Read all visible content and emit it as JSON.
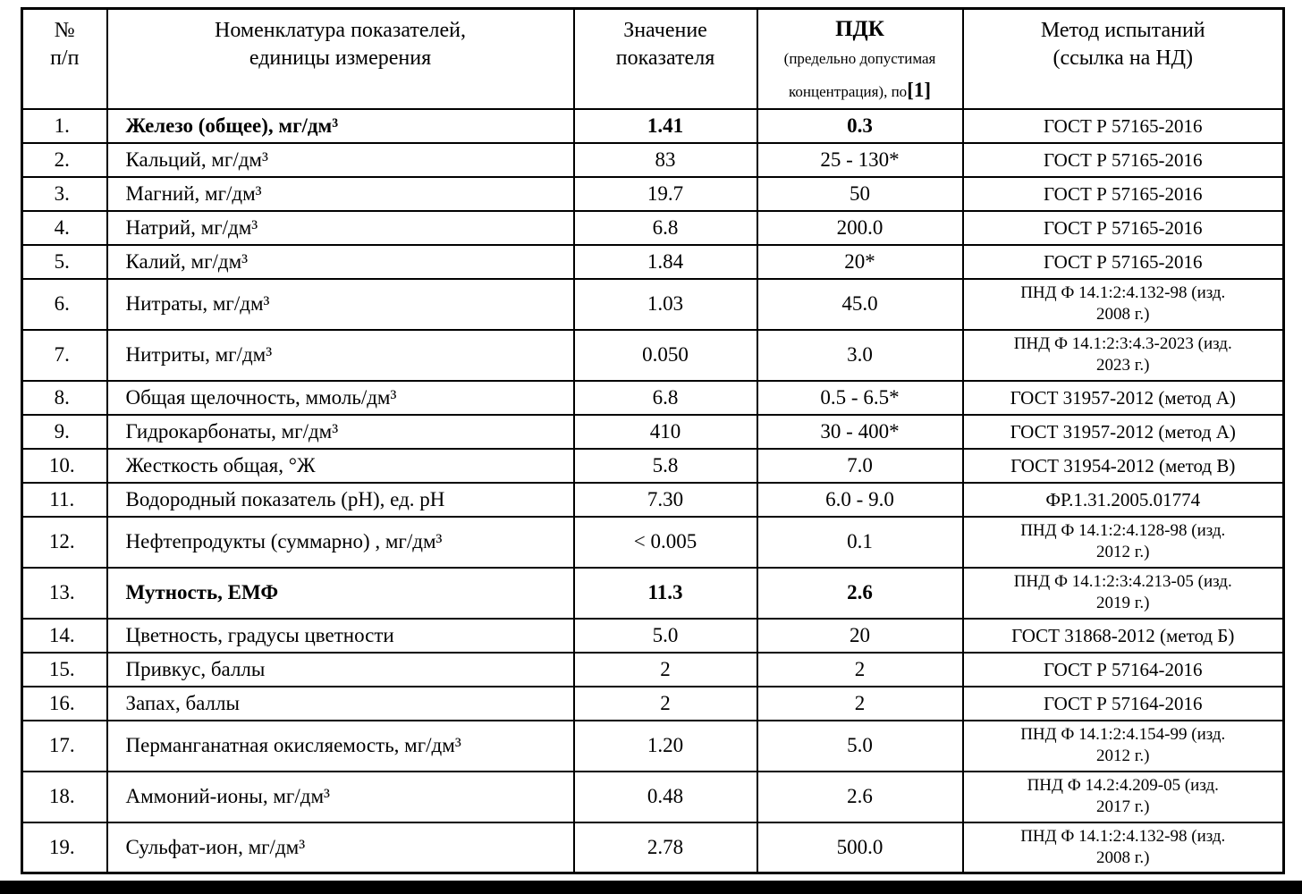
{
  "table": {
    "header": {
      "col_num_line1": "№",
      "col_num_line2": "п/п",
      "col_name_line1": "Номенклатура показателей,",
      "col_name_line2": "единицы измерения",
      "col_value_line1": "Значение",
      "col_value_line2": "показателя",
      "col_pdk_title": "ПДК",
      "col_pdk_sub1": "(предельно допустимая",
      "col_pdk_sub2": "концентрация), по",
      "col_pdk_ref": "[1]",
      "col_method_line1": "Метод испытаний",
      "col_method_line2": "(ссылка на НД)"
    },
    "rows": [
      {
        "num": "1.",
        "name": "Железо (общее), мг/дм³",
        "value": "1.41",
        "pdk": "0.3",
        "method": "ГОСТ Р 57165-2016",
        "bold": true
      },
      {
        "num": "2.",
        "name": "Кальций, мг/дм³",
        "value": "83",
        "pdk": "25 - 130*",
        "method": "ГОСТ Р 57165-2016",
        "bold": false
      },
      {
        "num": "3.",
        "name": "Магний, мг/дм³",
        "value": "19.7",
        "pdk": "50",
        "method": "ГОСТ Р 57165-2016",
        "bold": false
      },
      {
        "num": "4.",
        "name": "Натрий, мг/дм³",
        "value": "6.8",
        "pdk": "200.0",
        "method": "ГОСТ Р 57165-2016",
        "bold": false
      },
      {
        "num": "5.",
        "name": "Калий, мг/дм³",
        "value": "1.84",
        "pdk": "20*",
        "method": "ГОСТ Р 57165-2016",
        "bold": false
      },
      {
        "num": "6.",
        "name": "Нитраты, мг/дм³",
        "value": "1.03",
        "pdk": "45.0",
        "method": "ПНД Ф 14.1:2:4.132-98 (изд.\n2008 г.)",
        "bold": false
      },
      {
        "num": "7.",
        "name": "Нитриты, мг/дм³",
        "value": "0.050",
        "pdk": "3.0",
        "method": "ПНД Ф 14.1:2:3:4.3-2023 (изд.\n2023 г.)",
        "bold": false
      },
      {
        "num": "8.",
        "name": "Общая щелочность, ммоль/дм³",
        "value": "6.8",
        "pdk": "0.5 - 6.5*",
        "method": "ГОСТ 31957-2012 (метод А)",
        "bold": false
      },
      {
        "num": "9.",
        "name": "Гидрокарбонаты, мг/дм³",
        "value": "410",
        "pdk": "30 - 400*",
        "method": "ГОСТ 31957-2012 (метод А)",
        "bold": false
      },
      {
        "num": "10.",
        "name": "Жесткость общая, °Ж",
        "value": "5.8",
        "pdk": "7.0",
        "method": "ГОСТ 31954-2012 (метод В)",
        "bold": false
      },
      {
        "num": "11.",
        "name": "Водородный показатель (pH), ед. pH",
        "value": "7.30",
        "pdk": "6.0 - 9.0",
        "method": "ФР.1.31.2005.01774",
        "bold": false
      },
      {
        "num": "12.",
        "name": "Нефтепродукты (суммарно) , мг/дм³",
        "value": "< 0.005",
        "pdk": "0.1",
        "method": "ПНД Ф 14.1:2:4.128-98 (изд.\n2012 г.)",
        "bold": false
      },
      {
        "num": "13.",
        "name": "Мутность, ЕМФ",
        "value": "11.3",
        "pdk": "2.6",
        "method": "ПНД Ф 14.1:2:3:4.213-05 (изд.\n2019 г.)",
        "bold": true
      },
      {
        "num": "14.",
        "name": "Цветность, градусы цветности",
        "value": "5.0",
        "pdk": "20",
        "method": "ГОСТ 31868-2012 (метод Б)",
        "bold": false
      },
      {
        "num": "15.",
        "name": "Привкус, баллы",
        "value": "2",
        "pdk": "2",
        "method": "ГОСТ Р 57164-2016",
        "bold": false
      },
      {
        "num": "16.",
        "name": "Запах, баллы",
        "value": "2",
        "pdk": "2",
        "method": "ГОСТ Р 57164-2016",
        "bold": false
      },
      {
        "num": "17.",
        "name": "Перманганатная окисляемость, мг/дм³",
        "value": "1.20",
        "pdk": "5.0",
        "method": "ПНД Ф 14.1:2:4.154-99 (изд.\n2012 г.)",
        "bold": false
      },
      {
        "num": "18.",
        "name": "Аммоний-ионы, мг/дм³",
        "value": "0.48",
        "pdk": "2.6",
        "method": "ПНД Ф 14.2:4.209-05 (изд.\n2017 г.)",
        "bold": false
      },
      {
        "num": "19.",
        "name": "Сульфат-ион, мг/дм³",
        "value": "2.78",
        "pdk": "500.0",
        "method": "ПНД Ф 14.1:2:4.132-98 (изд.\n2008 г.)",
        "bold": false
      }
    ]
  }
}
